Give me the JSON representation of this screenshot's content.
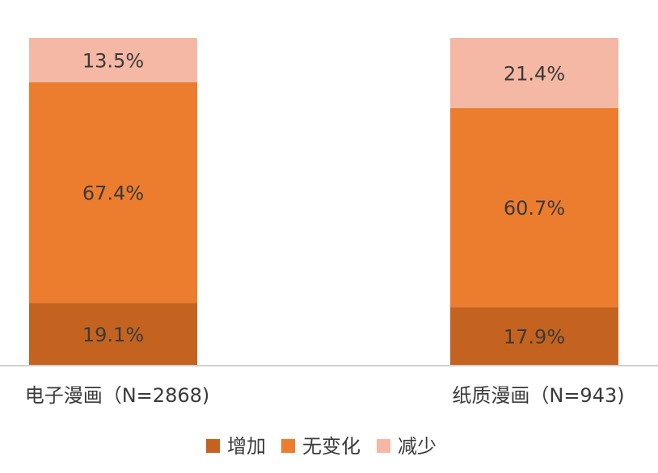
{
  "chart_data": {
    "type": "stacked_bar",
    "categories": [
      "电子漫画（N=2868)",
      "纸质漫画（N=943)"
    ],
    "series": [
      {
        "name": "增加",
        "color": "#c3631f",
        "values": [
          19.1,
          17.9
        ],
        "value_labels": [
          "19.1%",
          "17.9%"
        ]
      },
      {
        "name": "无变化",
        "color": "#ec7d2f",
        "values": [
          67.4,
          60.7
        ],
        "value_labels": [
          "67.4%",
          "60.7%"
        ]
      },
      {
        "name": "减少",
        "color": "#f4b8a4",
        "values": [
          13.5,
          21.4
        ],
        "value_labels": [
          "13.5%",
          "21.4%"
        ]
      }
    ],
    "ylim": [
      0,
      100
    ]
  }
}
